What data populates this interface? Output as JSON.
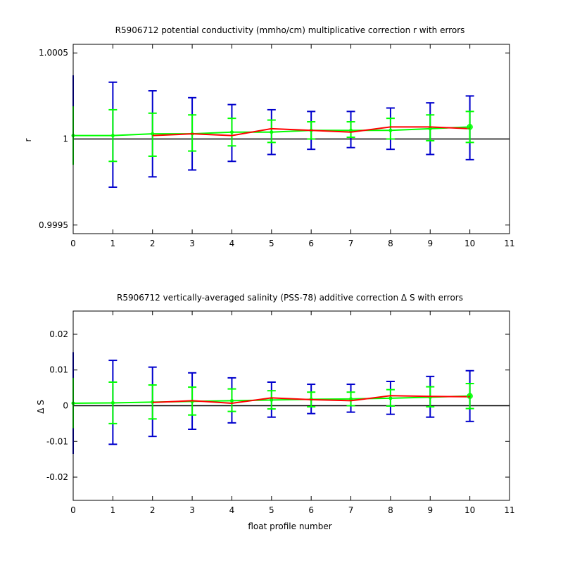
{
  "chart_data": [
    {
      "type": "line",
      "title": "R5906712 potential conductivity (mmho/cm) multiplicative correction r with errors",
      "xlabel": "",
      "ylabel": "r",
      "xlim": [
        0,
        11
      ],
      "ylim": [
        0.99945,
        1.00055
      ],
      "xticks": [
        0,
        1,
        2,
        3,
        4,
        5,
        6,
        7,
        8,
        9,
        10,
        11
      ],
      "xtick_labels": [
        "0",
        "1",
        "2",
        "3",
        "4",
        "5",
        "6",
        "7",
        "8",
        "9",
        "10",
        "11"
      ],
      "yticks": [
        0.9995,
        1,
        1.0005
      ],
      "ytick_labels": [
        "0.9995",
        "1",
        "1.0005"
      ],
      "reference_line": 1,
      "grid": false,
      "colors": {
        "outer_error": "#0000cc",
        "inner_error": "#00ff00",
        "fit": "#00ff00",
        "profile": "#ff0000",
        "reference": "#000000"
      },
      "series": [
        {
          "role": "outer_error",
          "x": [
            0,
            1,
            2,
            3,
            4,
            5,
            6,
            7,
            8,
            9,
            10
          ],
          "low": [
            0.99993,
            0.99972,
            0.99978,
            0.99982,
            0.99987,
            0.99991,
            0.99994,
            0.99995,
            0.99994,
            0.99991,
            0.99988
          ],
          "high": [
            1.00037,
            1.00033,
            1.00028,
            1.00024,
            1.0002,
            1.00017,
            1.00016,
            1.00016,
            1.00018,
            1.00021,
            1.00025
          ]
        },
        {
          "role": "inner_error",
          "x": [
            0,
            1,
            2,
            3,
            4,
            5,
            6,
            7,
            8,
            9,
            10
          ],
          "low": [
            0.99985,
            0.99987,
            0.9999,
            0.99993,
            0.99996,
            0.99998,
            1.0,
            1.00001,
            1.0,
            0.99999,
            0.99998
          ],
          "high": [
            1.00019,
            1.00017,
            1.00015,
            1.00014,
            1.00012,
            1.00011,
            1.0001,
            1.0001,
            1.00012,
            1.00014,
            1.00016
          ]
        },
        {
          "role": "fit",
          "x": [
            0,
            1,
            2,
            3,
            4,
            5,
            6,
            7,
            8,
            9,
            10
          ],
          "values": [
            1.00002,
            1.00002,
            1.00003,
            1.00003,
            1.00004,
            1.00004,
            1.00005,
            1.00005,
            1.00005,
            1.00006,
            1.00007
          ]
        },
        {
          "role": "profile",
          "x": [
            2,
            3,
            4,
            5,
            6,
            7,
            8,
            9,
            10
          ],
          "values": [
            1.00002,
            1.00003,
            1.00002,
            1.00006,
            1.00005,
            1.00004,
            1.00007,
            1.00007,
            1.00006
          ]
        }
      ]
    },
    {
      "type": "line",
      "title": "R5906712 vertically-averaged salinity (PSS-78) additive correction Δ S with errors",
      "xlabel": "float profile number",
      "ylabel": "Δ S",
      "xlim": [
        0,
        11
      ],
      "ylim": [
        -0.0265,
        0.0265
      ],
      "xticks": [
        0,
        1,
        2,
        3,
        4,
        5,
        6,
        7,
        8,
        9,
        10,
        11
      ],
      "xtick_labels": [
        "0",
        "1",
        "2",
        "3",
        "4",
        "5",
        "6",
        "7",
        "8",
        "9",
        "10",
        "11"
      ],
      "yticks": [
        -0.02,
        -0.01,
        0,
        0.01,
        0.02
      ],
      "ytick_labels": [
        "-0.02",
        "-0.01",
        "0",
        "0.01",
        "0.02"
      ],
      "reference_line": 0,
      "grid": false,
      "colors": {
        "outer_error": "#0000cc",
        "inner_error": "#00ff00",
        "fit": "#00ff00",
        "profile": "#ff0000",
        "reference": "#000000"
      },
      "series": [
        {
          "role": "outer_error",
          "x": [
            0,
            1,
            2,
            3,
            4,
            5,
            6,
            7,
            8,
            9,
            10
          ],
          "low": [
            -0.0135,
            -0.0108,
            -0.0086,
            -0.0066,
            -0.0048,
            -0.0032,
            -0.0022,
            -0.0018,
            -0.0024,
            -0.0032,
            -0.0044
          ],
          "high": [
            0.015,
            0.0127,
            0.0108,
            0.0092,
            0.0078,
            0.0066,
            0.006,
            0.006,
            0.0068,
            0.0082,
            0.0098
          ]
        },
        {
          "role": "inner_error",
          "x": [
            0,
            1,
            2,
            3,
            4,
            5,
            6,
            7,
            8,
            9,
            10
          ],
          "low": [
            -0.0063,
            -0.005,
            -0.0037,
            -0.0026,
            -0.0016,
            -0.0009,
            -0.0003,
            0.0,
            -0.0001,
            -0.0003,
            -0.0008
          ],
          "high": [
            0.0078,
            0.0066,
            0.0058,
            0.0052,
            0.0047,
            0.0042,
            0.0038,
            0.0038,
            0.0045,
            0.0053,
            0.0062
          ]
        },
        {
          "role": "fit",
          "x": [
            0,
            1,
            2,
            3,
            4,
            5,
            6,
            7,
            8,
            9,
            10
          ],
          "values": [
            0.0007,
            0.0008,
            0.001,
            0.0012,
            0.0014,
            0.0016,
            0.0018,
            0.0019,
            0.0021,
            0.0024,
            0.0027
          ]
        },
        {
          "role": "profile",
          "x": [
            2,
            3,
            4,
            5,
            6,
            7,
            8,
            9,
            10
          ],
          "values": [
            0.0009,
            0.0014,
            0.0007,
            0.0022,
            0.0017,
            0.0014,
            0.0028,
            0.0026,
            0.0025
          ]
        }
      ]
    }
  ]
}
